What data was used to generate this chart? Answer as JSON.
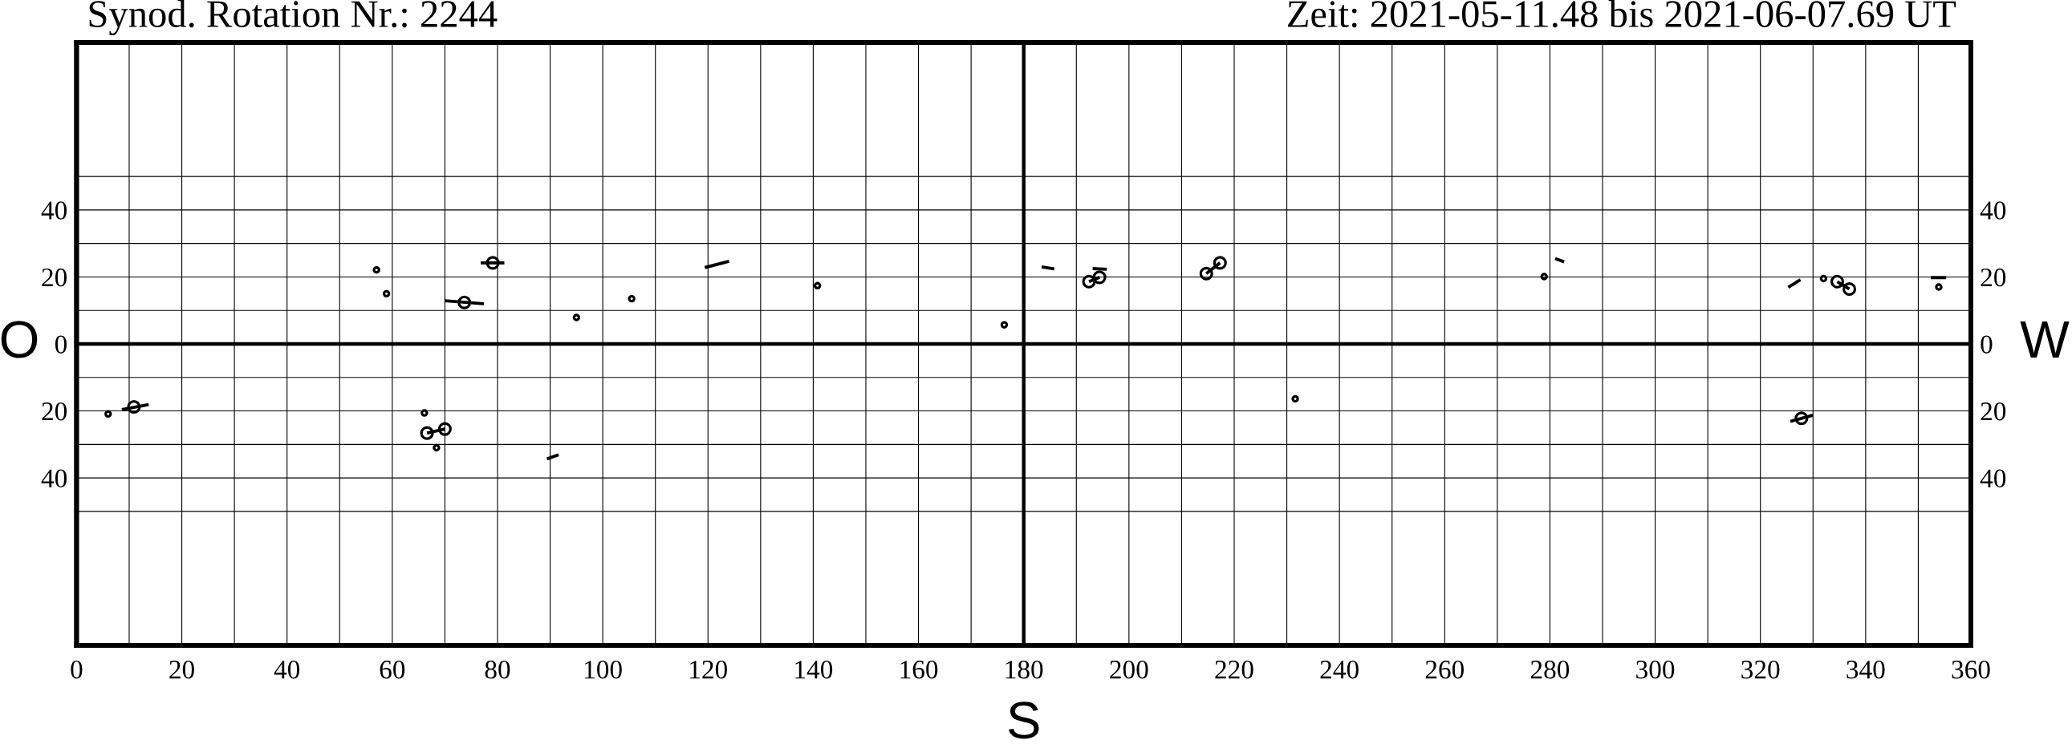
{
  "chart_data": {
    "type": "bubble",
    "title": "Synod. Rotation Nr.: 2244",
    "subtitle": "Zeit: 2021-05-11.48 bis 2021-06-07.69 UT",
    "xlabel": "S",
    "ylabel": "O",
    "y2label": "W",
    "xlim": [
      0,
      360
    ],
    "xticks": [
      0,
      {
        "value": 10,
        "label": null
      },
      20,
      {
        "value": 30,
        "label": null
      },
      40,
      {
        "value": 50,
        "label": null
      },
      60,
      {
        "value": 70,
        "label": null
      },
      80,
      {
        "value": 90,
        "label": null
      },
      100,
      {
        "value": 110,
        "label": null
      },
      120,
      {
        "value": 130,
        "label": null
      },
      140,
      {
        "value": 150,
        "label": null
      },
      160,
      {
        "value": 170,
        "label": null
      },
      180,
      {
        "value": 190,
        "label": null
      },
      200,
      {
        "value": 210,
        "label": null
      },
      220,
      {
        "value": 230,
        "label": null
      },
      240,
      {
        "value": 250,
        "label": null
      },
      260,
      {
        "value": 270,
        "label": null
      },
      280,
      {
        "value": 290,
        "label": null
      },
      300,
      {
        "value": 310,
        "label": null
      },
      320,
      {
        "value": 330,
        "label": null
      },
      340,
      {
        "value": 350,
        "label": null
      },
      360
    ],
    "ylim": [
      -90,
      90
    ],
    "yticks": [
      {
        "value": -50,
        "label": null
      },
      {
        "value": -40,
        "label": "40"
      },
      {
        "value": -30,
        "label": null
      },
      {
        "value": -20,
        "label": "20"
      },
      {
        "value": -10,
        "label": null
      },
      0,
      {
        "value": 10,
        "label": null
      },
      20,
      {
        "value": 30,
        "label": null
      },
      40,
      {
        "value": 50,
        "label": null
      }
    ],
    "y2lim": [
      -90,
      90
    ],
    "y2ticks": [
      {
        "value": -50,
        "label": null
      },
      {
        "value": -40,
        "label": "40"
      },
      {
        "value": -30,
        "label": null
      },
      {
        "value": -20,
        "label": "20"
      },
      {
        "value": -10,
        "label": null
      },
      0,
      {
        "value": 10,
        "label": null
      },
      20,
      {
        "value": 30,
        "label": null
      },
      40,
      {
        "value": 50,
        "label": null
      }
    ],
    "grid": true,
    "ref_lines": [
      {
        "axis": "y",
        "value": 0,
        "color": "#000000"
      },
      {
        "axis": "x",
        "value": 180,
        "color": "#000000"
      }
    ],
    "series": [
      {
        "type": "line",
        "color": "#000000",
        "x": [
          76.8,
          81.3
        ],
        "values": [
          24.2,
          24.2
        ]
      },
      {
        "type": "line",
        "color": "#000000",
        "x": [
          70.0,
          77.4
        ],
        "values": [
          12.9,
          12.0
        ]
      },
      {
        "type": "line",
        "color": "#000000",
        "x": [
          119.4,
          124.0
        ],
        "values": [
          22.8,
          24.7
        ]
      },
      {
        "type": "line",
        "color": "#000000",
        "x": [
          183.4,
          185.8
        ],
        "values": [
          23.0,
          22.4
        ]
      },
      {
        "type": "line",
        "color": "#000000",
        "x": [
          193.1,
          195.8
        ],
        "values": [
          22.5,
          22.3
        ]
      },
      {
        "type": "line",
        "color": "#000000",
        "x": [
          192.4,
          194.4
        ],
        "values": [
          18.6,
          19.9
        ]
      },
      {
        "type": "line",
        "color": "#000000",
        "x": [
          214.7,
          217.3
        ],
        "values": [
          21.0,
          24.2
        ]
      },
      {
        "type": "line",
        "color": "#000000",
        "x": [
          281.0,
          282.7
        ],
        "values": [
          25.5,
          24.5
        ]
      },
      {
        "type": "line",
        "color": "#000000",
        "x": [
          325.3,
          327.6
        ],
        "values": [
          16.9,
          19.2
        ]
      },
      {
        "type": "line",
        "color": "#000000",
        "x": [
          334.6,
          336.9
        ],
        "values": [
          18.6,
          16.4
        ]
      },
      {
        "type": "line",
        "color": "#000000",
        "x": [
          352.4,
          355.3
        ],
        "values": [
          19.8,
          19.8
        ]
      },
      {
        "type": "line",
        "color": "#000000",
        "x": [
          8.6,
          13.7
        ],
        "values": [
          -19.6,
          -18.1
        ]
      },
      {
        "type": "line",
        "color": "#000000",
        "x": [
          66.6,
          70.0
        ],
        "values": [
          -26.6,
          -25.4
        ]
      },
      {
        "type": "line",
        "color": "#000000",
        "x": [
          89.4,
          91.6
        ],
        "values": [
          -34.3,
          -33.1
        ]
      },
      {
        "type": "line",
        "color": "#000000",
        "x": [
          325.7,
          330.0
        ],
        "values": [
          -23.1,
          -21.3
        ]
      },
      {
        "color": "#000000",
        "x": [
          6.0,
          10.9,
          57.0,
          58.9,
          66.1,
          66.6,
          68.4,
          70.0,
          73.7,
          79.1,
          95.0,
          105.5,
          140.8,
          176.3,
          192.4,
          194.4,
          214.7,
          217.3,
          231.6,
          278.9,
          327.8,
          332.0,
          334.6,
          336.9,
          353.9
        ],
        "values": [
          -20.9,
          -18.8,
          22.1,
          15.0,
          -20.6,
          -26.6,
          -31.0,
          -25.4,
          12.4,
          24.2,
          7.9,
          13.5,
          17.4,
          5.7,
          18.6,
          19.9,
          21.0,
          24.2,
          -16.4,
          20.1,
          -22.2,
          19.5,
          18.6,
          16.4,
          17.0
        ],
        "sizes": [
          0.2,
          1,
          0.2,
          0.2,
          0.2,
          1,
          0.2,
          1,
          1,
          1,
          0.2,
          0.2,
          0.2,
          0.2,
          1,
          1,
          1,
          1,
          0.2,
          0.2,
          1,
          0.2,
          1,
          1,
          0.2
        ]
      }
    ]
  }
}
